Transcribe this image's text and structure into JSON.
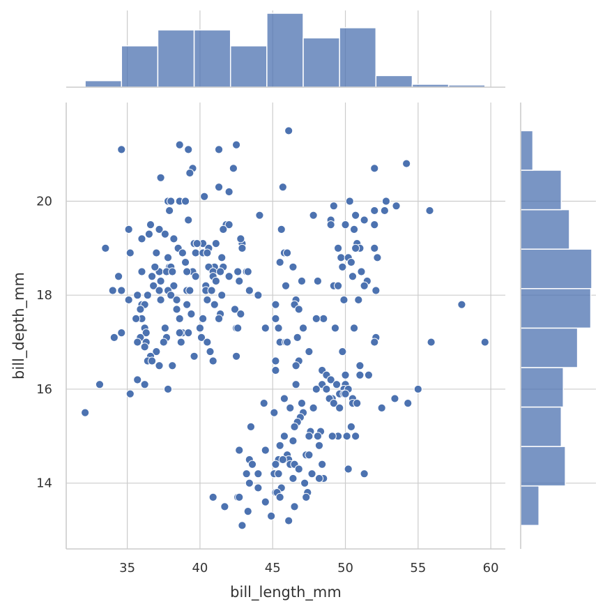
{
  "chart_data": {
    "type": "scatter",
    "variant": "jointplot with marginal histograms",
    "xlabel": "bill_length_mm",
    "ylabel": "bill_depth_mm",
    "xlim": [
      30.8,
      61.0
    ],
    "ylim": [
      12.6,
      22.1
    ],
    "x_ticks": [
      35,
      40,
      45,
      50,
      55,
      60
    ],
    "y_ticks": [
      14,
      16,
      18,
      20
    ],
    "grid": true,
    "color": "#4c72b0",
    "points": [
      [
        34.6,
        21.1
      ],
      [
        38.6,
        21.2
      ],
      [
        39.2,
        21.1
      ],
      [
        41.3,
        21.1
      ],
      [
        42.5,
        21.2
      ],
      [
        46.1,
        21.5
      ],
      [
        54.2,
        20.8
      ],
      [
        52.0,
        20.7
      ],
      [
        42.3,
        20.7
      ],
      [
        39.5,
        20.7
      ],
      [
        39.3,
        20.6
      ],
      [
        37.3,
        20.5
      ],
      [
        41.3,
        20.3
      ],
      [
        45.7,
        20.3
      ],
      [
        42.0,
        20.2
      ],
      [
        40.3,
        20.1
      ],
      [
        37.8,
        20.0
      ],
      [
        38.0,
        20.0
      ],
      [
        38.6,
        20.0
      ],
      [
        39.0,
        20.0
      ],
      [
        50.3,
        20.0
      ],
      [
        52.8,
        20.0
      ],
      [
        49.2,
        19.9
      ],
      [
        53.5,
        19.9
      ],
      [
        52.0,
        19.8
      ],
      [
        37.9,
        19.8
      ],
      [
        52.7,
        19.8
      ],
      [
        55.8,
        19.8
      ],
      [
        50.7,
        19.7
      ],
      [
        44.1,
        19.7
      ],
      [
        47.8,
        19.7
      ],
      [
        39.2,
        19.6
      ],
      [
        49.0,
        19.6
      ],
      [
        51.3,
        19.6
      ],
      [
        41.8,
        19.5
      ],
      [
        42.0,
        19.5
      ],
      [
        50.0,
        19.5
      ],
      [
        52.0,
        19.5
      ],
      [
        36.6,
        19.5
      ],
      [
        35.1,
        19.4
      ],
      [
        37.2,
        19.4
      ],
      [
        41.6,
        19.4
      ],
      [
        45.6,
        19.4
      ],
      [
        49.0,
        19.5
      ],
      [
        50.6,
        19.4
      ],
      [
        36.5,
        19.3
      ],
      [
        37.6,
        19.3
      ],
      [
        41.1,
        19.1
      ],
      [
        42.9,
        19.1
      ],
      [
        40.2,
        19.1
      ],
      [
        39.6,
        19.1
      ],
      [
        38.2,
        19.2
      ],
      [
        36.0,
        19.2
      ],
      [
        42.8,
        19.2
      ],
      [
        39.8,
        19.1
      ],
      [
        50.8,
        19.1
      ],
      [
        51.0,
        19.0
      ],
      [
        33.5,
        19.0
      ],
      [
        38.5,
        19.0
      ],
      [
        40.6,
        19.0
      ],
      [
        42.9,
        19.0
      ],
      [
        49.5,
        19.0
      ],
      [
        50.7,
        19.0
      ],
      [
        52.0,
        19.0
      ],
      [
        35.2,
        18.9
      ],
      [
        37.0,
        18.9
      ],
      [
        39.7,
        18.9
      ],
      [
        40.2,
        18.9
      ],
      [
        45.8,
        18.9
      ],
      [
        46.0,
        18.9
      ],
      [
        37.8,
        18.8
      ],
      [
        38.8,
        18.9
      ],
      [
        40.5,
        18.9
      ],
      [
        41.5,
        18.8
      ],
      [
        49.7,
        18.8
      ],
      [
        50.2,
        18.8
      ],
      [
        52.2,
        18.8
      ],
      [
        39.0,
        18.7
      ],
      [
        45.5,
        18.7
      ],
      [
        50.4,
        18.7
      ],
      [
        37.9,
        18.6
      ],
      [
        38.0,
        18.6
      ],
      [
        41.0,
        18.6
      ],
      [
        41.6,
        18.6
      ],
      [
        46.4,
        18.6
      ],
      [
        49.8,
        18.6
      ],
      [
        37.2,
        18.5
      ],
      [
        36.9,
        18.6
      ],
      [
        40.6,
        18.6
      ],
      [
        39.5,
        18.5
      ],
      [
        40.9,
        18.5
      ],
      [
        41.4,
        18.5
      ],
      [
        42.6,
        18.5
      ],
      [
        43.2,
        18.5
      ],
      [
        43.3,
        18.5
      ],
      [
        51.1,
        18.5
      ],
      [
        37.7,
        18.5
      ],
      [
        38.1,
        18.5
      ],
      [
        39.1,
        18.5
      ],
      [
        36.0,
        18.5
      ],
      [
        34.4,
        18.4
      ],
      [
        36.7,
        18.4
      ],
      [
        39.7,
        18.4
      ],
      [
        40.9,
        18.4
      ],
      [
        42.0,
        18.4
      ],
      [
        50.5,
        18.4
      ],
      [
        37.3,
        18.3
      ],
      [
        41.1,
        18.3
      ],
      [
        42.7,
        18.3
      ],
      [
        47.0,
        18.3
      ],
      [
        48.1,
        18.3
      ],
      [
        51.5,
        18.3
      ],
      [
        36.8,
        18.2
      ],
      [
        38.2,
        18.2
      ],
      [
        40.4,
        18.2
      ],
      [
        45.9,
        18.2
      ],
      [
        49.2,
        18.2
      ],
      [
        49.5,
        18.2
      ],
      [
        51.3,
        18.2
      ],
      [
        39.1,
        18.1
      ],
      [
        34.0,
        18.1
      ],
      [
        34.6,
        18.1
      ],
      [
        37.2,
        18.1
      ],
      [
        39.3,
        18.1
      ],
      [
        40.4,
        18.1
      ],
      [
        43.4,
        18.1
      ],
      [
        52.1,
        18.1
      ],
      [
        37.8,
        18.1
      ],
      [
        40.8,
        18.1
      ],
      [
        35.7,
        18.0
      ],
      [
        38.0,
        18.0
      ],
      [
        41.5,
        18.0
      ],
      [
        44.0,
        18.0
      ],
      [
        36.4,
        18.0
      ],
      [
        35.1,
        17.9
      ],
      [
        37.3,
        17.9
      ],
      [
        38.4,
        17.9
      ],
      [
        40.5,
        17.9
      ],
      [
        46.6,
        17.9
      ],
      [
        49.9,
        17.9
      ],
      [
        50.9,
        17.9
      ],
      [
        36.0,
        17.8
      ],
      [
        39.1,
        17.8
      ],
      [
        41.0,
        17.8
      ],
      [
        45.2,
        17.8
      ],
      [
        46.5,
        17.8
      ],
      [
        58.0,
        17.8
      ],
      [
        36.2,
        17.8
      ],
      [
        35.9,
        17.7
      ],
      [
        38.4,
        17.7
      ],
      [
        42.4,
        17.7
      ],
      [
        46.8,
        17.7
      ],
      [
        39.4,
        17.6
      ],
      [
        41.4,
        17.6
      ],
      [
        42.8,
        17.6
      ],
      [
        36.0,
        17.5
      ],
      [
        38.6,
        17.5
      ],
      [
        40.2,
        17.5
      ],
      [
        45.2,
        17.5
      ],
      [
        48.5,
        17.5
      ],
      [
        35.6,
        17.5
      ],
      [
        41.3,
        17.5
      ],
      [
        48.0,
        17.5
      ],
      [
        36.2,
        17.3
      ],
      [
        37.6,
        17.3
      ],
      [
        40.0,
        17.3
      ],
      [
        42.5,
        17.3
      ],
      [
        44.5,
        17.3
      ],
      [
        45.4,
        17.3
      ],
      [
        47.1,
        17.3
      ],
      [
        49.3,
        17.3
      ],
      [
        50.6,
        17.3
      ],
      [
        36.3,
        17.2
      ],
      [
        38.8,
        17.2
      ],
      [
        42.6,
        17.3
      ],
      [
        34.6,
        17.2
      ],
      [
        35.9,
        17.1
      ],
      [
        37.7,
        17.1
      ],
      [
        38.6,
        17.2
      ],
      [
        39.2,
        17.2
      ],
      [
        40.1,
        17.1
      ],
      [
        34.1,
        17.1
      ],
      [
        46.7,
        17.1
      ],
      [
        52.1,
        17.1
      ],
      [
        36.3,
        17.0
      ],
      [
        37.5,
        17.0
      ],
      [
        38.7,
        17.0
      ],
      [
        40.5,
        17.0
      ],
      [
        45.5,
        17.0
      ],
      [
        45.9,
        17.0
      ],
      [
        46.0,
        17.0
      ],
      [
        52.0,
        17.0
      ],
      [
        55.9,
        17.0
      ],
      [
        59.6,
        17.0
      ],
      [
        35.7,
        17.0
      ],
      [
        36.2,
        16.9
      ],
      [
        37.0,
        16.8
      ],
      [
        40.7,
        16.8
      ],
      [
        47.5,
        16.8
      ],
      [
        49.8,
        16.8
      ],
      [
        36.6,
        16.7
      ],
      [
        39.6,
        16.7
      ],
      [
        42.5,
        16.7
      ],
      [
        36.4,
        16.6
      ],
      [
        36.7,
        16.6
      ],
      [
        40.9,
        16.6
      ],
      [
        45.2,
        16.6
      ],
      [
        46.8,
        16.6
      ],
      [
        37.2,
        16.5
      ],
      [
        38.1,
        16.5
      ],
      [
        46.6,
        16.5
      ],
      [
        51.0,
        16.5
      ],
      [
        48.4,
        16.4
      ],
      [
        45.2,
        16.4
      ],
      [
        48.7,
        16.3
      ],
      [
        50.0,
        16.3
      ],
      [
        51.0,
        16.3
      ],
      [
        51.6,
        16.3
      ],
      [
        35.7,
        16.2
      ],
      [
        49.0,
        16.2
      ],
      [
        48.4,
        16.1
      ],
      [
        33.1,
        16.1
      ],
      [
        36.2,
        16.1
      ],
      [
        46.6,
        16.1
      ],
      [
        49.4,
        16.1
      ],
      [
        50.0,
        16.1
      ],
      [
        49.9,
        16.0
      ],
      [
        37.8,
        16.0
      ],
      [
        48.0,
        16.0
      ],
      [
        48.7,
        16.0
      ],
      [
        50.2,
        16.0
      ],
      [
        55.0,
        16.0
      ],
      [
        35.2,
        15.9
      ],
      [
        49.6,
        15.9
      ],
      [
        49.9,
        15.9
      ],
      [
        50.0,
        15.9
      ],
      [
        49.1,
        15.8
      ],
      [
        50.5,
        15.8
      ],
      [
        48.9,
        15.8
      ],
      [
        53.4,
        15.8
      ],
      [
        45.8,
        15.8
      ],
      [
        49.2,
        15.7
      ],
      [
        50.5,
        15.7
      ],
      [
        50.8,
        15.7
      ],
      [
        54.3,
        15.7
      ],
      [
        44.4,
        15.7
      ],
      [
        47.0,
        15.7
      ],
      [
        52.5,
        15.6
      ],
      [
        46.2,
        15.6
      ],
      [
        47.8,
        15.6
      ],
      [
        49.6,
        15.6
      ],
      [
        45.1,
        15.5
      ],
      [
        32.1,
        15.5
      ],
      [
        47.1,
        15.5
      ],
      [
        46.9,
        15.4
      ],
      [
        46.7,
        15.3
      ],
      [
        43.5,
        15.2
      ],
      [
        50.4,
        15.2
      ],
      [
        46.5,
        15.2
      ],
      [
        47.6,
        15.1
      ],
      [
        48.3,
        15.1
      ],
      [
        50.1,
        15.0
      ],
      [
        49.5,
        15.0
      ],
      [
        45.8,
        15.0
      ],
      [
        48.1,
        15.0
      ],
      [
        47.5,
        15.0
      ],
      [
        50.7,
        15.0
      ],
      [
        49.1,
        15.0
      ],
      [
        42.7,
        14.7
      ],
      [
        44.5,
        14.7
      ],
      [
        45.5,
        14.8
      ],
      [
        46.4,
        14.9
      ],
      [
        48.2,
        14.8
      ],
      [
        46.0,
        14.6
      ],
      [
        47.3,
        14.6
      ],
      [
        47.5,
        14.6
      ],
      [
        46.1,
        14.5
      ],
      [
        43.4,
        14.5
      ],
      [
        45.4,
        14.5
      ],
      [
        45.7,
        14.5
      ],
      [
        45.2,
        14.4
      ],
      [
        46.2,
        14.4
      ],
      [
        43.6,
        14.4
      ],
      [
        46.5,
        14.4
      ],
      [
        48.4,
        14.4
      ],
      [
        50.2,
        14.3
      ],
      [
        45.1,
        14.2
      ],
      [
        45.4,
        14.2
      ],
      [
        47.7,
        14.2
      ],
      [
        51.3,
        14.2
      ],
      [
        43.2,
        14.2
      ],
      [
        44.0,
        14.2
      ],
      [
        46.8,
        14.3
      ],
      [
        48.5,
        14.1
      ],
      [
        46.4,
        14.1
      ],
      [
        48.2,
        14.1
      ],
      [
        43.4,
        14.0
      ],
      [
        47.2,
        14.0
      ],
      [
        44.0,
        13.9
      ],
      [
        45.6,
        13.9
      ],
      [
        45.2,
        13.8
      ],
      [
        45.3,
        13.8
      ],
      [
        47.4,
        13.8
      ],
      [
        45.5,
        13.7
      ],
      [
        40.9,
        13.7
      ],
      [
        42.6,
        13.7
      ],
      [
        42.7,
        13.7
      ],
      [
        47.3,
        13.7
      ],
      [
        44.5,
        13.6
      ],
      [
        41.7,
        13.5
      ],
      [
        46.5,
        13.5
      ],
      [
        43.3,
        13.4
      ],
      [
        44.9,
        13.3
      ],
      [
        46.1,
        13.2
      ],
      [
        42.9,
        13.1
      ]
    ],
    "x_hist": {
      "orientation": "vertical",
      "bin_edges": [
        32.1,
        34.6,
        37.1,
        39.6,
        42.1,
        44.6,
        47.1,
        49.6,
        52.1,
        54.6,
        57.1,
        59.6
      ],
      "counts": [
        9,
        57,
        79,
        79,
        57,
        102,
        68,
        82,
        16,
        4,
        3
      ]
    },
    "y_hist": {
      "orientation": "horizontal",
      "bin_edges": [
        13.1,
        13.94,
        14.78,
        15.62,
        16.46,
        17.3,
        18.14,
        18.98,
        19.82,
        20.66,
        21.5
      ],
      "counts": [
        18,
        44,
        40,
        42,
        56,
        69,
        70,
        48,
        40,
        12
      ]
    }
  }
}
